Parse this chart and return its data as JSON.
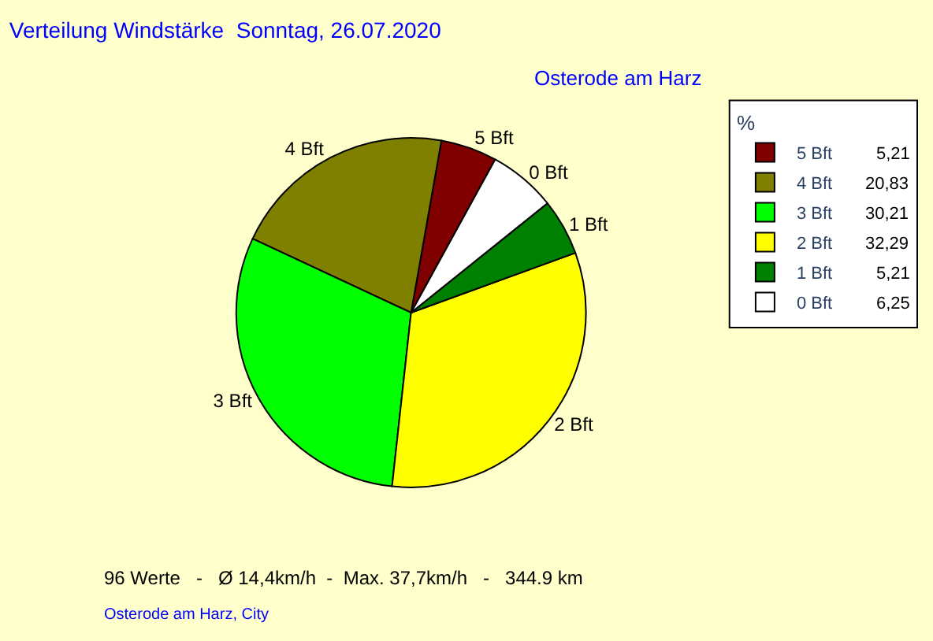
{
  "chart_data": {
    "type": "pie",
    "title": "Verteilung Windstärke  Sonntag, 26.07.2020",
    "subtitle": "Osterode am Harz",
    "categories": [
      "5 Bft",
      "4 Bft",
      "3 Bft",
      "2 Bft",
      "1 Bft",
      "0 Bft"
    ],
    "values": [
      5.21,
      20.83,
      30.21,
      32.29,
      5.21,
      6.25
    ],
    "value_labels": [
      "5,21",
      "20,83",
      "30,21",
      "32,29",
      "5,21",
      "6,25"
    ],
    "colors": [
      "#800000",
      "#808000",
      "#00ff00",
      "#ffff00",
      "#008000",
      "#ffffff"
    ],
    "legend_title": "%",
    "legend": "top right",
    "annotations": [
      "96 Werte   -   Ø 14,4km/h  -  Max. 37,7km/h   -   344.9 km",
      "Osterode am Harz, City"
    ]
  }
}
